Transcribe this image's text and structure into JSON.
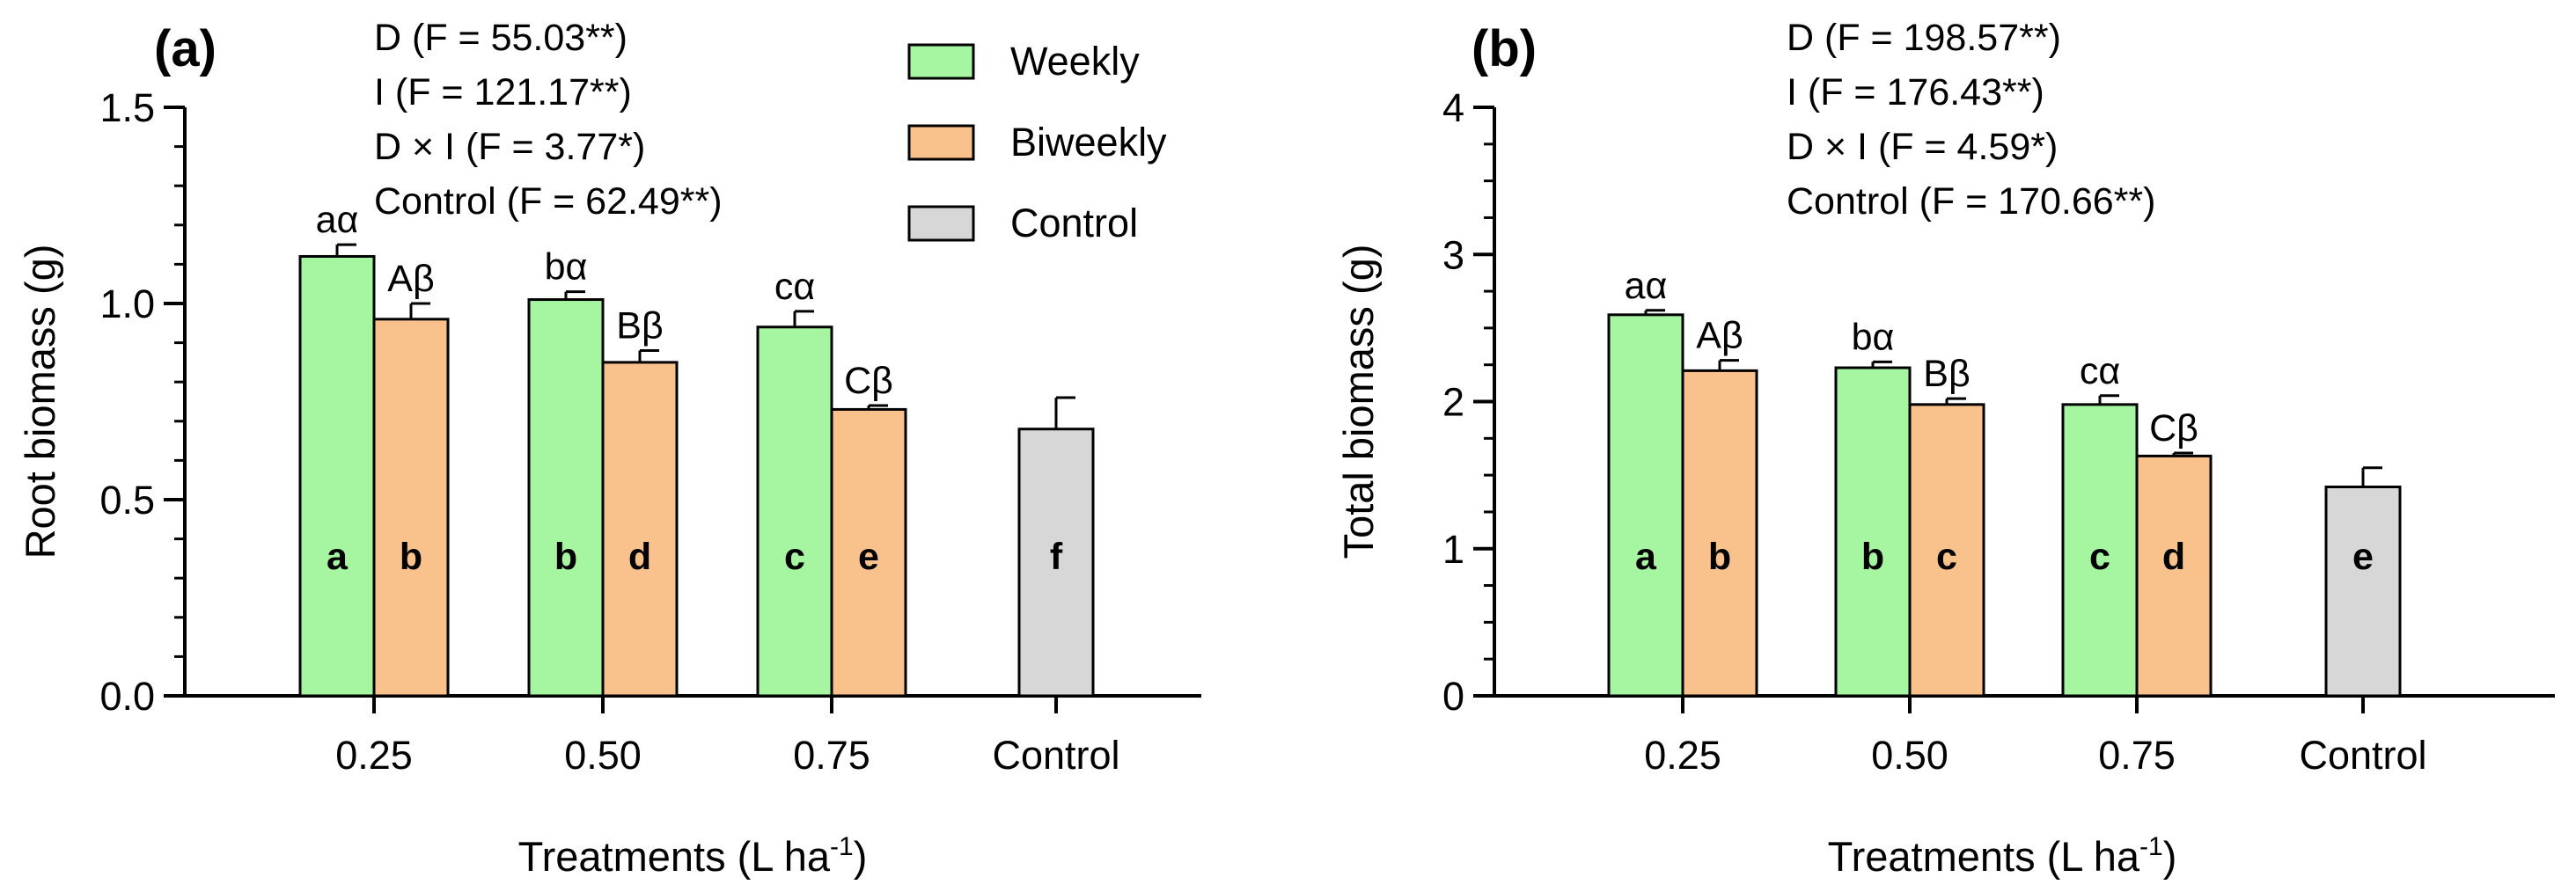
{
  "chart_data": [
    {
      "type": "bar",
      "panel": "(a)",
      "title": "",
      "xlabel": "Treatments (L ha",
      "xlabel_sup": "-1",
      "xlabel_end": ")",
      "ylabel": "Root biomass (g)",
      "ylim": [
        0,
        1.5
      ],
      "yticks": [
        "0.0",
        "0.5",
        "1.0",
        "1.5"
      ],
      "ytick_values": [
        0,
        0.5,
        1.0,
        1.5
      ],
      "yminor_step": 0.1,
      "categories": [
        "0.25",
        "0.50",
        "0.75",
        "Control"
      ],
      "series": [
        {
          "name": "Weekly",
          "color": "#a6f5a0",
          "values": [
            1.12,
            1.01,
            0.94,
            null
          ],
          "errors": [
            0.03,
            0.02,
            0.04,
            null
          ],
          "top_labels": [
            "aα",
            "bα",
            "cα",
            null
          ],
          "in_labels": [
            "a",
            "b",
            "c",
            null
          ]
        },
        {
          "name": "Biweekly",
          "color": "#f9c28c",
          "values": [
            0.96,
            0.85,
            0.73,
            null
          ],
          "errors": [
            0.04,
            0.03,
            0.01,
            null
          ],
          "top_labels": [
            "Aβ",
            "Bβ",
            "Cβ",
            null
          ],
          "in_labels": [
            "b",
            "d",
            "e",
            null
          ]
        },
        {
          "name": "Control",
          "color": "#d7d7d7",
          "values": [
            null,
            null,
            null,
            0.68
          ],
          "errors": [
            null,
            null,
            null,
            0.08
          ],
          "top_labels": [
            null,
            null,
            null,
            null
          ],
          "in_labels": [
            null,
            null,
            null,
            "f"
          ]
        }
      ],
      "annotations": [
        "D (F = 55.03**)",
        "I (F = 121.17**)",
        "D × I (F = 3.77*)",
        "Control (F = 62.49**)"
      ],
      "legend": [
        "Weekly",
        "Biweekly",
        "Control"
      ],
      "legend_position": "top-right"
    },
    {
      "type": "bar",
      "panel": "(b)",
      "title": "",
      "xlabel": "Treatments (L ha",
      "xlabel_sup": "-1",
      "xlabel_end": ")",
      "ylabel": "Total biomass (g)",
      "ylim": [
        0,
        4
      ],
      "yticks": [
        "0",
        "1",
        "2",
        "3",
        "4"
      ],
      "ytick_values": [
        0,
        1,
        2,
        3,
        4
      ],
      "yminor_step": 0.25,
      "categories": [
        "0.25",
        "0.50",
        "0.75",
        "Control"
      ],
      "series": [
        {
          "name": "Weekly",
          "color": "#a6f5a0",
          "values": [
            2.59,
            2.23,
            1.98,
            null
          ],
          "errors": [
            0.03,
            0.04,
            0.06,
            null
          ],
          "top_labels": [
            "aα",
            "bα",
            "cα",
            null
          ],
          "in_labels": [
            "a",
            "b",
            "c",
            null
          ]
        },
        {
          "name": "Biweekly",
          "color": "#f9c28c",
          "values": [
            2.21,
            1.98,
            1.63,
            null
          ],
          "errors": [
            0.07,
            0.04,
            0.02,
            null
          ],
          "top_labels": [
            "Aβ",
            "Bβ",
            "Cβ",
            null
          ],
          "in_labels": [
            "b",
            "c",
            "d",
            null
          ]
        },
        {
          "name": "Control",
          "color": "#d7d7d7",
          "values": [
            null,
            null,
            null,
            1.42
          ],
          "errors": [
            null,
            null,
            null,
            0.13
          ],
          "top_labels": [
            null,
            null,
            null,
            null
          ],
          "in_labels": [
            null,
            null,
            null,
            "e"
          ]
        }
      ],
      "annotations": [
        "D (F = 198.57**)",
        "I (F = 176.43**)",
        "D × I (F = 4.59*)",
        "Control (F = 170.66**)"
      ],
      "legend": [],
      "legend_position": "none"
    }
  ]
}
